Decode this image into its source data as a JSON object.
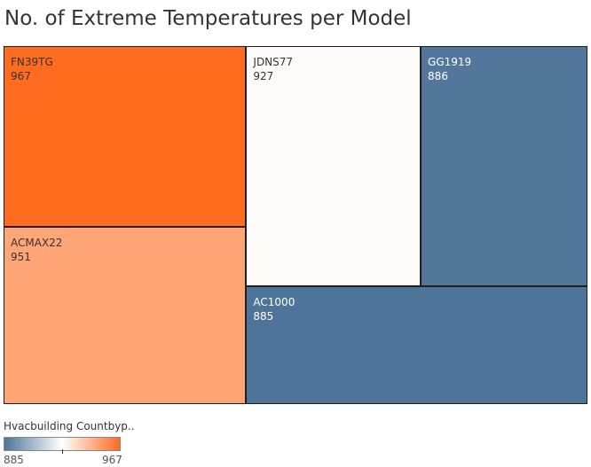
{
  "chart_data": {
    "type": "treemap",
    "title": "No. of Extreme Temperatures per Model",
    "items": [
      {
        "name": "FN39TG",
        "value": 967
      },
      {
        "name": "ACMAX22",
        "value": 951
      },
      {
        "name": "JDNS77",
        "value": 927
      },
      {
        "name": "GG1919",
        "value": 886
      },
      {
        "name": "AC1000",
        "value": 885
      }
    ],
    "color_legend": {
      "title": "Hvacbuilding Countbyp..",
      "min": 885,
      "max": 967,
      "min_color": "#4e7499",
      "mid_color": "#ffffff",
      "max_color": "#ff6b1f"
    }
  }
}
